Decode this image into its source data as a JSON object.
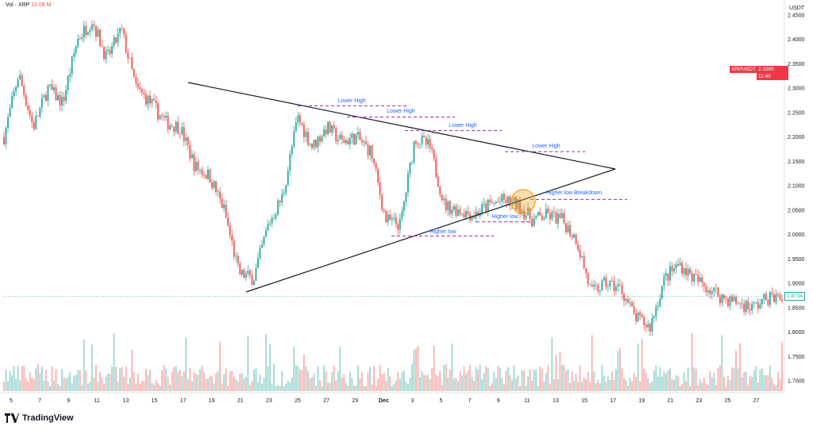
{
  "header": {
    "vol_label": "Vol · XRP",
    "vol_value": "10.08 M"
  },
  "brand": {
    "name": "TradingView",
    "logo_icon": "tradingview-logo-icon"
  },
  "price_axis": {
    "unit": "USDT",
    "labels": [
      "2.4500",
      "2.4000",
      "2.3500",
      "2.3000",
      "2.2500",
      "2.2000",
      "2.1500",
      "2.1000",
      "2.0500",
      "2.0000",
      "1.9500",
      "1.9000",
      "1.8500",
      "1.8000",
      "1.7500",
      "1.7000"
    ]
  },
  "time_axis": {
    "labels": [
      "5",
      "7",
      "9",
      "11",
      "13",
      "15",
      "17",
      "19",
      "21",
      "23",
      "25",
      "27",
      "29",
      "Dec",
      "3",
      "5",
      "7",
      "9",
      "11",
      "13",
      "15",
      "17",
      "19",
      "21",
      "23",
      "25",
      "27"
    ]
  },
  "price_tag": {
    "symbol": "XRPUSDT",
    "price": "2.3365",
    "time": "11:40"
  },
  "last_price_tag": "1.8734",
  "colors": {
    "up": "#26a69a",
    "down": "#ef5350",
    "annotation": "#9c27b0",
    "label": "#2962ff",
    "highlight": "#f7a21b"
  },
  "annotations": [
    {
      "text": "Lower High",
      "kind": "lower-high"
    },
    {
      "text": "Lower High",
      "kind": "lower-high"
    },
    {
      "text": "Lower High",
      "kind": "lower-high"
    },
    {
      "text": "Lower High",
      "kind": "lower-high"
    },
    {
      "text": "Higher low Breakdown",
      "kind": "breakdown"
    },
    {
      "text": "Higher low",
      "kind": "higher-low"
    },
    {
      "text": "Higher low",
      "kind": "higher-low"
    }
  ],
  "chart_data": {
    "type": "candlestick",
    "symbol": "XRPUSDT",
    "ylim": [
      1.69,
      2.46
    ],
    "pattern": "symmetrical-triangle",
    "triangle": {
      "upper_line": [
        [
          "17",
          2.31
        ],
        [
          "17 Dec",
          2.13
        ]
      ],
      "lower_line": [
        [
          "21",
          1.88
        ],
        [
          "17 Dec",
          2.13
        ]
      ]
    },
    "levels": [
      {
        "label": "Lower High",
        "price": 2.264
      },
      {
        "label": "Lower High",
        "price": 2.241
      },
      {
        "label": "Lower High",
        "price": 2.213
      },
      {
        "label": "Lower High",
        "price": 2.17
      },
      {
        "label": "Higher low Breakdown",
        "price": 2.072
      },
      {
        "label": "Higher low",
        "price": 2.026
      },
      {
        "label": "Higher low",
        "price": 1.997
      }
    ],
    "price_path": [
      [
        "5",
        2.2
      ],
      [
        "6",
        2.33
      ],
      [
        "7",
        2.22
      ],
      [
        "8",
        2.3
      ],
      [
        "9",
        2.27
      ],
      [
        "10",
        2.4
      ],
      [
        "11",
        2.44
      ],
      [
        "12",
        2.36
      ],
      [
        "13",
        2.42
      ],
      [
        "14",
        2.3
      ],
      [
        "15",
        2.27
      ],
      [
        "16",
        2.23
      ],
      [
        "17",
        2.22
      ],
      [
        "18",
        2.14
      ],
      [
        "19",
        2.12
      ],
      [
        "20",
        2.05
      ],
      [
        "21",
        1.92
      ],
      [
        "22",
        1.91
      ],
      [
        "23",
        2.02
      ],
      [
        "24",
        2.08
      ],
      [
        "25",
        2.24
      ],
      [
        "26",
        2.18
      ],
      [
        "27",
        2.22
      ],
      [
        "28",
        2.19
      ],
      [
        "29",
        2.2
      ],
      [
        "30",
        2.17
      ],
      [
        "Dec",
        2.03
      ],
      [
        "2",
        2.02
      ],
      [
        "3",
        2.2
      ],
      [
        "4",
        2.18
      ],
      [
        "5",
        2.06
      ],
      [
        "6",
        2.05
      ],
      [
        "7",
        2.04
      ],
      [
        "8",
        2.06
      ],
      [
        "9",
        2.07
      ],
      [
        "10",
        2.06
      ],
      [
        "11",
        2.03
      ],
      [
        "12",
        2.04
      ],
      [
        "13",
        2.03
      ],
      [
        "14",
        1.99
      ],
      [
        "15",
        1.88
      ],
      [
        "16",
        1.9
      ],
      [
        "17",
        1.89
      ],
      [
        "18",
        1.83
      ],
      [
        "19",
        1.81
      ],
      [
        "20",
        1.91
      ],
      [
        "21",
        1.94
      ],
      [
        "22",
        1.91
      ],
      [
        "23",
        1.89
      ],
      [
        "24",
        1.87
      ],
      [
        "25",
        1.86
      ],
      [
        "26",
        1.85
      ],
      [
        "27",
        1.87
      ],
      [
        "28",
        1.87
      ]
    ],
    "last_price": 1.8734
  }
}
